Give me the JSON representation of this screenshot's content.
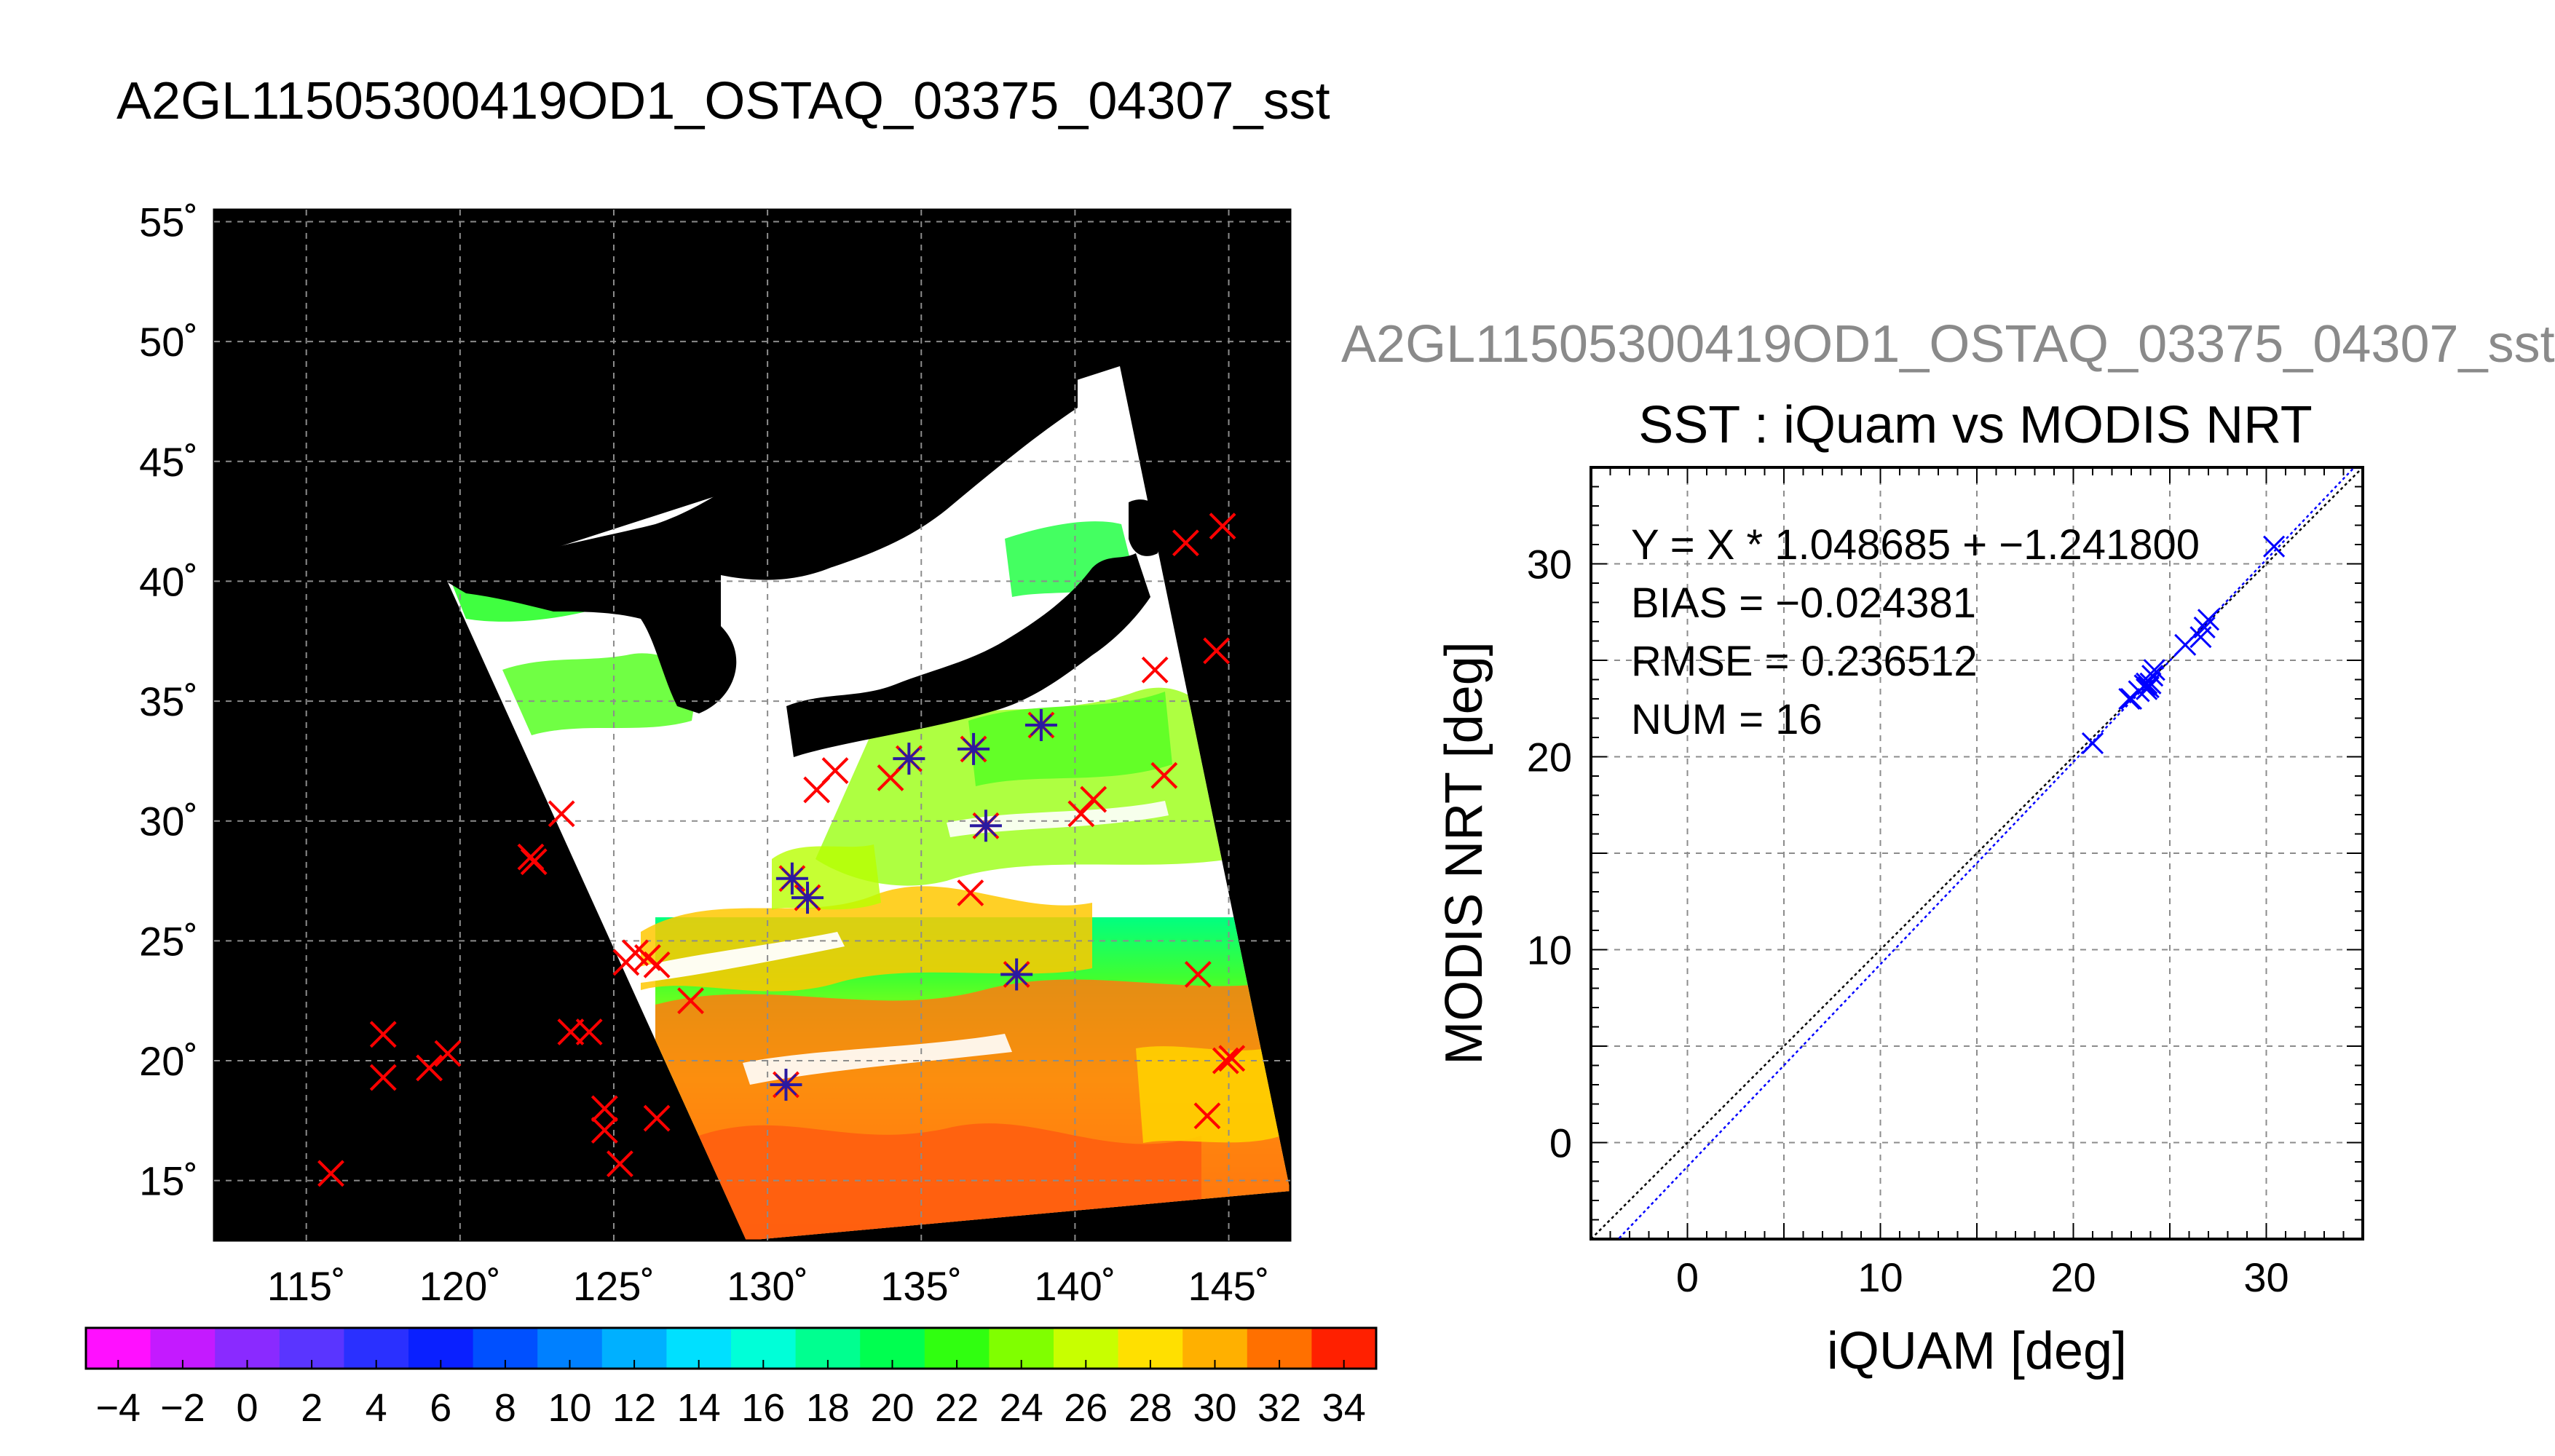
{
  "map": {
    "title": "A2GL11505300419OD1_OSTAQ_03375_04307_sst",
    "lon_ticks": [
      "115˚",
      "120˚",
      "125˚",
      "130˚",
      "135˚",
      "140˚",
      "145˚"
    ],
    "lat_ticks": [
      "55˚",
      "50˚",
      "45˚",
      "40˚",
      "35˚",
      "30˚",
      "25˚",
      "20˚",
      "15˚"
    ],
    "lon_range": [
      112,
      147
    ],
    "lat_range": [
      12.5,
      55.5
    ],
    "match_points": [
      {
        "lon": 115.8,
        "lat": 15.3,
        "matched": false
      },
      {
        "lon": 117.5,
        "lat": 21.1,
        "matched": false
      },
      {
        "lon": 117.5,
        "lat": 19.3,
        "matched": false
      },
      {
        "lon": 119.0,
        "lat": 19.7,
        "matched": false
      },
      {
        "lon": 119.6,
        "lat": 20.3,
        "matched": false
      },
      {
        "lon": 122.3,
        "lat": 28.5,
        "matched": false
      },
      {
        "lon": 122.4,
        "lat": 28.3,
        "matched": false
      },
      {
        "lon": 123.3,
        "lat": 30.3,
        "matched": false
      },
      {
        "lon": 123.6,
        "lat": 21.2,
        "matched": false
      },
      {
        "lon": 124.2,
        "lat": 21.2,
        "matched": false
      },
      {
        "lon": 124.7,
        "lat": 18.0,
        "matched": false
      },
      {
        "lon": 124.7,
        "lat": 17.1,
        "matched": false
      },
      {
        "lon": 125.2,
        "lat": 15.7,
        "matched": false
      },
      {
        "lon": 125.4,
        "lat": 24.1,
        "matched": false
      },
      {
        "lon": 125.7,
        "lat": 24.5,
        "matched": false
      },
      {
        "lon": 126.1,
        "lat": 24.3,
        "matched": false
      },
      {
        "lon": 126.4,
        "lat": 24.0,
        "matched": false
      },
      {
        "lon": 126.4,
        "lat": 17.6,
        "matched": false
      },
      {
        "lon": 127.5,
        "lat": 22.5,
        "matched": false
      },
      {
        "lon": 130.8,
        "lat": 27.6,
        "matched": true
      },
      {
        "lon": 131.3,
        "lat": 26.8,
        "matched": true
      },
      {
        "lon": 131.6,
        "lat": 31.3,
        "matched": false
      },
      {
        "lon": 132.2,
        "lat": 32.1,
        "matched": false
      },
      {
        "lon": 134.0,
        "lat": 31.8,
        "matched": false
      },
      {
        "lon": 134.6,
        "lat": 32.6,
        "matched": true
      },
      {
        "lon": 136.6,
        "lat": 27.0,
        "matched": false
      },
      {
        "lon": 136.7,
        "lat": 33.0,
        "matched": true
      },
      {
        "lon": 137.1,
        "lat": 29.8,
        "matched": true
      },
      {
        "lon": 138.1,
        "lat": 23.6,
        "matched": true
      },
      {
        "lon": 138.9,
        "lat": 34.0,
        "matched": true
      },
      {
        "lon": 140.2,
        "lat": 30.3,
        "matched": false
      },
      {
        "lon": 140.6,
        "lat": 30.9,
        "matched": false
      },
      {
        "lon": 142.6,
        "lat": 36.3,
        "matched": false
      },
      {
        "lon": 142.9,
        "lat": 31.9,
        "matched": false
      },
      {
        "lon": 143.6,
        "lat": 41.6,
        "matched": false
      },
      {
        "lon": 144.0,
        "lat": 23.6,
        "matched": false
      },
      {
        "lon": 144.3,
        "lat": 17.7,
        "matched": false
      },
      {
        "lon": 144.6,
        "lat": 37.1,
        "matched": false
      },
      {
        "lon": 144.8,
        "lat": 42.3,
        "matched": false
      },
      {
        "lon": 144.9,
        "lat": 20.0,
        "matched": false
      },
      {
        "lon": 145.1,
        "lat": 20.1,
        "matched": false
      },
      {
        "lon": 130.6,
        "lat": 19.0,
        "matched": true
      }
    ]
  },
  "colorbar": {
    "tick_labels": [
      "−4",
      "−2",
      "0",
      "2",
      "4",
      "6",
      "8",
      "10",
      "12",
      "14",
      "16",
      "18",
      "20",
      "22",
      "24",
      "26",
      "28",
      "30",
      "32",
      "34"
    ],
    "min": -5,
    "max": 35,
    "colors": [
      "#ff10ff",
      "#c41aff",
      "#8a2aff",
      "#5a35ff",
      "#2a30ff",
      "#0a20ff",
      "#0050ff",
      "#0080ff",
      "#00b0ff",
      "#00e0ff",
      "#00ffd8",
      "#00ff90",
      "#00ff50",
      "#30ff10",
      "#80ff00",
      "#c8ff00",
      "#ffe000",
      "#ffb000",
      "#ff7000",
      "#ff2000"
    ]
  },
  "scatter": {
    "file_title": "A2GL11505300419OD1_OSTAQ_03375_04307_sst",
    "title": "SST : iQuam vs MODIS NRT",
    "xlabel": "iQUAM [deg]",
    "ylabel": "MODIS NRT [deg]",
    "stats": {
      "regression": "Y = X * 1.048685 + −1.241800",
      "bias": "BIAS = −0.024381",
      "rmse": "RMSE = 0.236512",
      "num": "NUM = 16"
    },
    "x_ticks": [
      "0",
      "10",
      "20",
      "30"
    ],
    "y_ticks": [
      "0",
      "10",
      "20",
      "30"
    ],
    "colors": {
      "one_to_one": "#000000",
      "fit": "#0000ff",
      "points": "#0000ff",
      "map_unmatched": "#ff0000",
      "map_matched": "#2a1aa0"
    }
  },
  "chart_data": {
    "type": "scatter",
    "title": "SST : iQuam vs MODIS NRT",
    "xlabel": "iQUAM [deg]",
    "ylabel": "MODIS NRT [deg]",
    "xlim": [
      -5,
      35
    ],
    "ylim": [
      -5,
      35
    ],
    "grid": true,
    "fit": {
      "slope": 1.048685,
      "intercept": -1.2418
    },
    "series": [
      {
        "x": [
          30.4,
          27.0,
          26.8,
          26.6,
          25.8,
          24.1,
          24.0,
          23.9,
          23.8,
          23.7,
          23.4,
          23.0,
          22.9,
          21.0,
          24.2,
          23.8
        ],
        "y": [
          30.9,
          27.1,
          26.7,
          26.2,
          25.8,
          24.2,
          23.8,
          23.6,
          23.8,
          23.7,
          23.4,
          23.0,
          23.0,
          20.7,
          24.5,
          23.5
        ]
      }
    ]
  }
}
